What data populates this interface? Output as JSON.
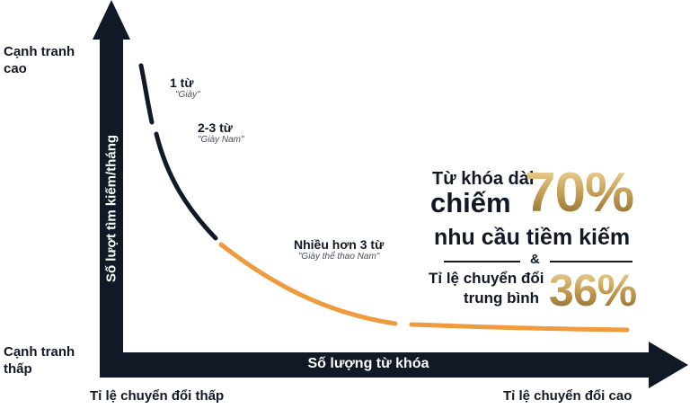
{
  "labels": {
    "top_left": "Cạnh tranh\ncao",
    "bottom_left": "Cạnh tranh\nthấp",
    "y_axis": "Số lượt tìm kiếm/tháng",
    "x_axis": "Số lượng từ khóa",
    "bottom_low": "Tỉ lệ chuyển đổi thấp",
    "bottom_high": "Tỉ lệ chuyển đổi cao"
  },
  "annotations": [
    {
      "title": "1 từ",
      "example": "\"Giày\""
    },
    {
      "title": "2-3 từ",
      "example": "\"Giày Nam\""
    },
    {
      "title": "Nhiều hơn 3 từ",
      "example": "\"Giày thể thao Nam\""
    }
  ],
  "stats": {
    "line1": "Từ khóa dài",
    "line2_word": "chiếm",
    "pct1": "70%",
    "line3": "nhu cầu tiềm kiếm",
    "amp": "&",
    "line4": "Tỉ lệ chuyển đổi",
    "line5": "trung bình",
    "pct2": "36%"
  },
  "colors": {
    "navy": "#111826",
    "orange": "#ef9a3c",
    "gold": "#c9a35a"
  }
}
